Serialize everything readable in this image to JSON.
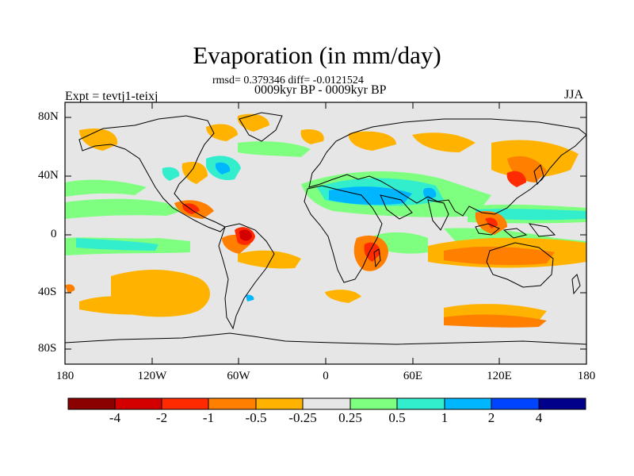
{
  "title": "Evaporation (in mm/day)",
  "stats_line": "rmsd= 0.379346 diff= -0.0121524",
  "period_line": "0009kyr BP - 0009kyr BP",
  "experiment_label": "Expt = tevtj1-teixj",
  "season_label": "JJA",
  "map": {
    "lat_axis": [
      "80N",
      "40N",
      "0",
      "40S",
      "80S"
    ],
    "lon_axis": [
      "180",
      "120W",
      "60W",
      "0",
      "60E",
      "120E",
      "180"
    ],
    "background_color": "#e6e6e6"
  },
  "colorbar": {
    "labels": [
      "-4",
      "-2",
      "-1",
      "-0.5",
      "-0.25",
      "0.25",
      "0.5",
      "1",
      "2",
      "4"
    ],
    "colors": [
      "#8b0000",
      "#d40000",
      "#ff2a00",
      "#ff7f00",
      "#ffb300",
      "#e6e6e6",
      "#7fff7f",
      "#33eecc",
      "#00b7ff",
      "#0044ff",
      "#00008b"
    ]
  }
}
